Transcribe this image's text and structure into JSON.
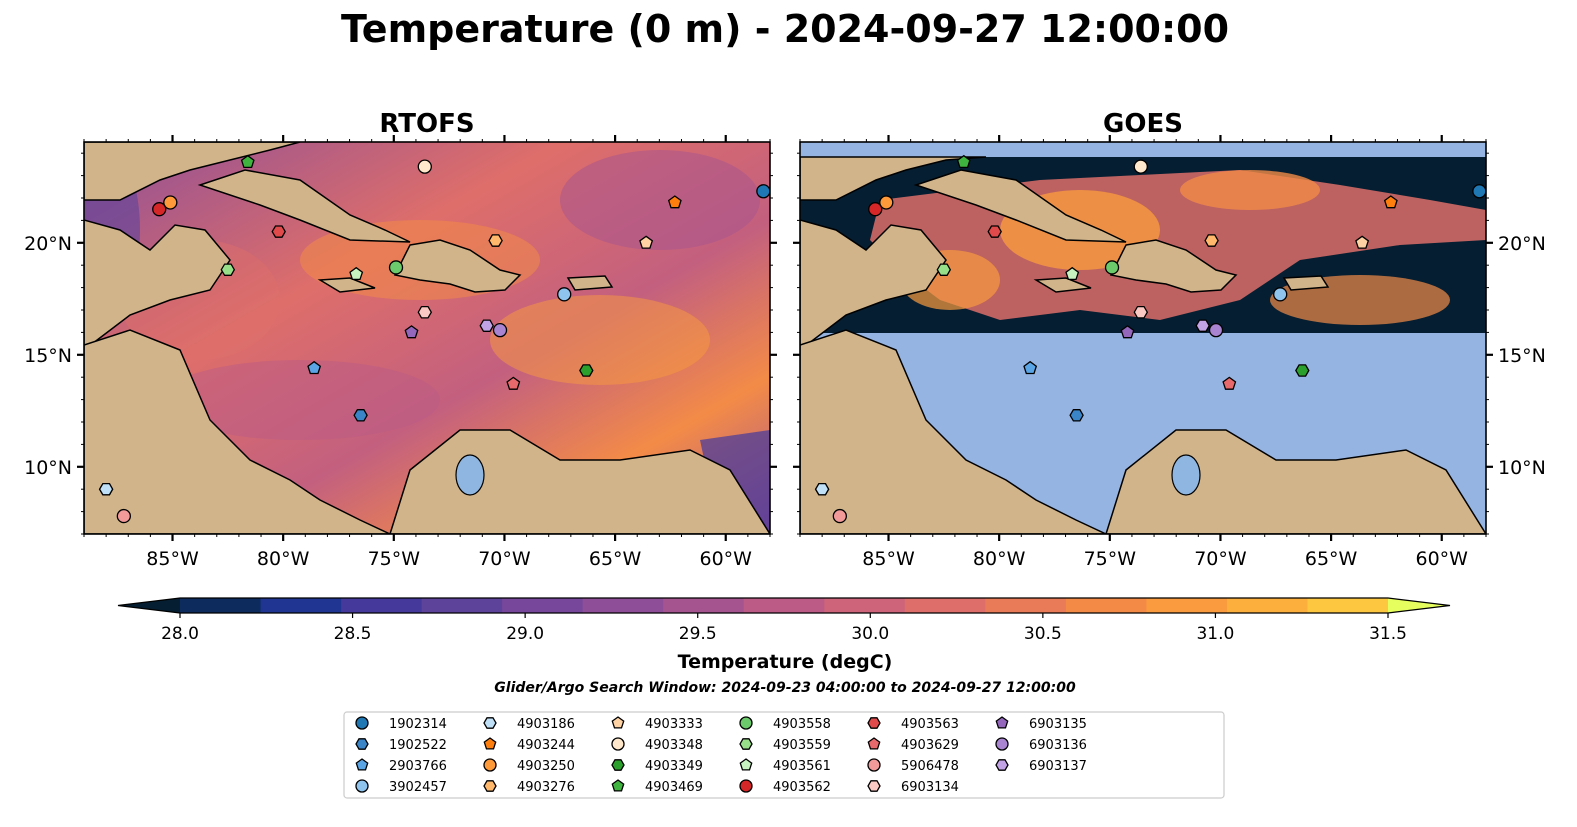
{
  "figure": {
    "title": "Temperature (0 m) - 2024-09-27 12:00:00",
    "search_window": "Glider/Argo Search Window: 2024-09-23 04:00:00 to 2024-09-27 12:00:00"
  },
  "maps": [
    {
      "title": "RTOFS"
    },
    {
      "title": "GOES"
    }
  ],
  "axes": {
    "lon_ticks": [
      -85,
      -80,
      -75,
      -70,
      -65,
      -60
    ],
    "lon_labels": [
      "85°W",
      "80°W",
      "75°W",
      "70°W",
      "65°W",
      "60°W"
    ],
    "lat_ticks": [
      10,
      15,
      20
    ],
    "lat_labels": [
      "10°N",
      "15°N",
      "20°N"
    ],
    "lon_range": [
      -89.0,
      -58.0
    ],
    "lat_range": [
      7.0,
      24.5
    ]
  },
  "colorbar": {
    "label": "Temperature (degC)",
    "min": 28.0,
    "max": 31.5,
    "tick_values": [
      28.0,
      28.5,
      29.0,
      29.5,
      30.0,
      30.5,
      31.0,
      31.5
    ],
    "tick_labels": [
      "28.0",
      "28.5",
      "29.0",
      "29.5",
      "30.0",
      "30.5",
      "31.0",
      "31.5"
    ],
    "colors": [
      "#061e31",
      "#0d2b5c",
      "#1f3591",
      "#45399c",
      "#5e439b",
      "#77479b",
      "#8f4f98",
      "#a65490",
      "#bb5b86",
      "#cd647a",
      "#de6e6a",
      "#ea7b58",
      "#f38b47",
      "#f99b3e",
      "#fcaf3c",
      "#fdc83f",
      "#e6ff5e"
    ],
    "extend": "both"
  },
  "legend": {
    "items": [
      {
        "label": "1902314",
        "marker": "circle",
        "color": "#1f77b4",
        "lon": -58.3,
        "lat": 22.3
      },
      {
        "label": "1902522",
        "marker": "hexagon",
        "color": "#3a84c8",
        "lon": -88.0,
        "lat": 9.0
      },
      {
        "label": "2903766",
        "marker": "pentagon",
        "color": "#5aa5e6",
        "lon": -78.6,
        "lat": 14.4
      },
      {
        "label": "3902457",
        "marker": "circle",
        "color": "#8ec4ee",
        "lon": -67.3,
        "lat": 17.7
      },
      {
        "label": "4903186",
        "marker": "hexagon",
        "color": "#bfe0f7",
        "lon": -88.0,
        "lat": 9.0
      },
      {
        "label": "4903244",
        "marker": "pentagon",
        "color": "#ff7f0e",
        "lon": -62.3,
        "lat": 21.8
      },
      {
        "label": "4903250",
        "marker": "circle",
        "color": "#ff9a3a",
        "lon": -85.1,
        "lat": 21.8
      },
      {
        "label": "4903276",
        "marker": "hexagon",
        "color": "#ffb86c",
        "lon": -70.4,
        "lat": 20.1
      },
      {
        "label": "4903333",
        "marker": "pentagon",
        "color": "#ffd3a3",
        "lon": -63.6,
        "lat": 20.0
      },
      {
        "label": "4903348",
        "marker": "circle",
        "color": "#ffe8cc",
        "lon": -73.6,
        "lat": 23.4
      },
      {
        "label": "4903349",
        "marker": "hexagon",
        "color": "#2ca02c",
        "lon": -66.3,
        "lat": 14.3
      },
      {
        "label": "4903469",
        "marker": "pentagon",
        "color": "#3fb43f",
        "lon": -81.6,
        "lat": 23.6
      },
      {
        "label": "4903558",
        "marker": "circle",
        "color": "#6cc96c",
        "lon": -74.9,
        "lat": 18.9
      },
      {
        "label": "4903559",
        "marker": "hexagon",
        "color": "#98df8a",
        "lon": -82.5,
        "lat": 18.8
      },
      {
        "label": "4903561",
        "marker": "pentagon",
        "color": "#c7f3c0",
        "lon": -76.7,
        "lat": 18.6
      },
      {
        "label": "4903562",
        "marker": "circle",
        "color": "#d62728",
        "lon": -85.6,
        "lat": 21.5
      },
      {
        "label": "4903563",
        "marker": "hexagon",
        "color": "#e04a4a",
        "lon": -80.2,
        "lat": 20.5
      },
      {
        "label": "4903629",
        "marker": "pentagon",
        "color": "#e8696b",
        "lon": -69.6,
        "lat": 13.7
      },
      {
        "label": "5906478",
        "marker": "circle",
        "color": "#f29a9a",
        "lon": -87.2,
        "lat": 7.8
      },
      {
        "label": "6903134",
        "marker": "hexagon",
        "color": "#fbc9c4",
        "lon": -73.6,
        "lat": 16.9
      },
      {
        "label": "6903135",
        "marker": "pentagon",
        "color": "#9467bd",
        "lon": -74.2,
        "lat": 16.0
      },
      {
        "label": "6903136",
        "marker": "circle",
        "color": "#a884d1",
        "lon": -70.2,
        "lat": 16.1
      },
      {
        "label": "6903137",
        "marker": "hexagon",
        "color": "#c2a3e6",
        "lon": -70.8,
        "lat": 16.3
      },
      {
        "label": "",
        "marker": "hexagon",
        "color": "#3a84c8",
        "lon": -76.5,
        "lat": 12.3
      }
    ]
  },
  "colors": {
    "land": "#d1b48a",
    "lake": "#8fb6e0",
    "nodata": "#96b4e2",
    "frame": "#000000"
  }
}
